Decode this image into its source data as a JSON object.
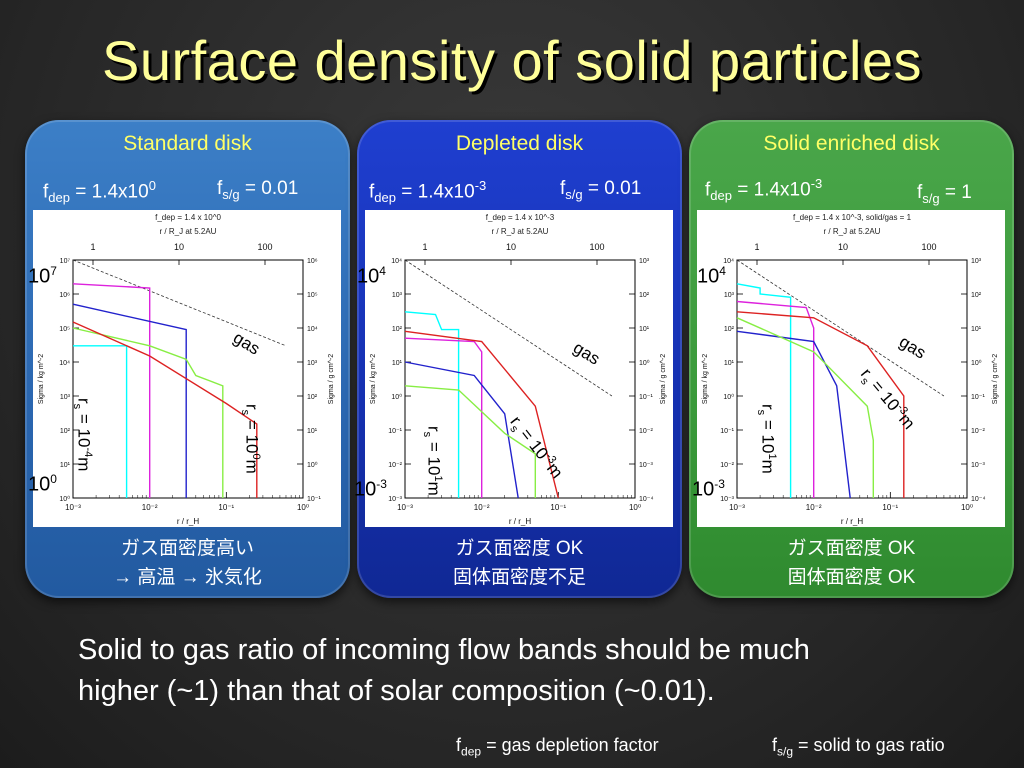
{
  "title": "Surface density of solid particles",
  "panels": [
    {
      "id": "standard",
      "title": "Standard disk",
      "fdep_base": "1.4x10",
      "fdep_exp": "0",
      "fsg": "0.01",
      "plot_header": "f_dep = 1.4 x 10^0",
      "ytop": "10",
      "ytop_exp": "7",
      "ybot": "10",
      "ybot_exp": "0",
      "size_small": "10",
      "size_small_exp": "-4",
      "size_large": "10",
      "size_large_exp": "0",
      "note_line1": "ガス面密度高い",
      "note_line2": "→ 高温 → 氷気化"
    },
    {
      "id": "depleted",
      "title": "Depleted disk",
      "fdep_base": "1.4x10",
      "fdep_exp": "-3",
      "fsg": "0.01",
      "plot_header": "f_dep = 1.4 x 10^-3",
      "ytop": "10",
      "ytop_exp": "4",
      "ybot": "10",
      "ybot_exp": "-3",
      "size_small": "10",
      "size_small_exp": "1",
      "size_large": "10",
      "size_large_exp": "-3",
      "note_line1": "ガス面密度 OK",
      "note_line2": "固体面密度不足"
    },
    {
      "id": "enriched",
      "title": "Solid enriched disk",
      "fdep_base": "1.4x10",
      "fdep_exp": "-3",
      "fsg": "1",
      "plot_header": "f_dep = 1.4 x 10^-3, solid/gas = 1",
      "ytop": "10",
      "ytop_exp": "4",
      "ybot": "10",
      "ybot_exp": "-3",
      "size_small": "10",
      "size_small_exp": "1",
      "size_large": "10",
      "size_large_exp": "-3",
      "note_line1": "ガス面密度 OK",
      "note_line2": "固体面密度 OK"
    }
  ],
  "labels": {
    "fdep_sym": "f",
    "fdep_sub": "dep",
    "fsg_sym": "f",
    "fsg_sub": "s/g",
    "rs": "r",
    "rs_sub": "s",
    "gas": "gas",
    "unit_m": "m",
    "top_axis": "r / R_J at 5.2AU",
    "x_axis": "r / r_H",
    "y_left": "Sigma / kg m^-2",
    "y_right": "Sigma / g cm^-2",
    "top_ticks": [
      "1",
      "10",
      "100"
    ],
    "x_ticks": [
      "10⁻³",
      "10⁻²",
      "10⁻¹",
      "10⁰"
    ]
  },
  "conclusion_line1": "Solid to gas ratio of incoming flow bands should be much",
  "conclusion_line2": "higher (~1) than that of solar composition (~0.01).",
  "footer": {
    "fdep_desc": "= gas depletion factor",
    "fsg_desc": "= solid to gas ratio"
  },
  "colors": {
    "title": "#ffff99",
    "panel_standard": "#2a66b0",
    "panel_depleted": "#1530b0",
    "panel_enriched": "#3a9a3a",
    "series": [
      "#00ffff",
      "#dd22dd",
      "#2222cc",
      "#88ee44",
      "#dd2222"
    ]
  },
  "chart_data": [
    {
      "type": "line",
      "title": "f_dep = 1.4 x 10^0",
      "xlabel": "r / r_H",
      "ylabel": "Sigma / kg m^-2",
      "xscale": "log",
      "yscale": "log",
      "xlim": [
        0.001,
        1
      ],
      "ylim": [
        1,
        10000000
      ],
      "series": [
        {
          "name": "gas",
          "color": "#333333",
          "dash": true,
          "x": [
            0.001,
            0.6
          ],
          "y": [
            10000000,
            30000
          ]
        },
        {
          "color": "#00ffff",
          "x": [
            0.001,
            0.005,
            0.005
          ],
          "y": [
            30000,
            30000,
            1
          ]
        },
        {
          "color": "#dd22dd",
          "x": [
            0.001,
            0.01,
            0.01
          ],
          "y": [
            2000000,
            1500000,
            1
          ]
        },
        {
          "color": "#2222cc",
          "x": [
            0.001,
            0.03,
            0.03
          ],
          "y": [
            500000,
            90000,
            1
          ]
        },
        {
          "color": "#88ee44",
          "x": [
            0.001,
            0.01,
            0.03,
            0.04,
            0.09,
            0.09
          ],
          "y": [
            100000,
            30000,
            12000,
            4000,
            2000,
            1
          ]
        },
        {
          "color": "#dd2222",
          "x": [
            0.001,
            0.01,
            0.1,
            0.25,
            0.25
          ],
          "y": [
            150000,
            15000,
            600,
            150,
            1
          ]
        }
      ]
    },
    {
      "type": "line",
      "title": "f_dep = 1.4 x 10^-3",
      "xlabel": "r / r_H",
      "ylabel": "Sigma / kg m^-2",
      "xscale": "log",
      "yscale": "log",
      "xlim": [
        0.001,
        1
      ],
      "ylim": [
        0.001,
        10000
      ],
      "series": [
        {
          "name": "gas",
          "color": "#333333",
          "dash": true,
          "x": [
            0.001,
            0.5
          ],
          "y": [
            10000,
            1
          ]
        },
        {
          "color": "#00ffff",
          "x": [
            0.001,
            0.0025,
            0.003,
            0.005,
            0.005
          ],
          "y": [
            300,
            250,
            90,
            90,
            0.001
          ]
        },
        {
          "color": "#dd22dd",
          "x": [
            0.001,
            0.008,
            0.01,
            0.01
          ],
          "y": [
            50,
            40,
            20,
            0.001
          ]
        },
        {
          "color": "#2222cc",
          "x": [
            0.001,
            0.008,
            0.02,
            0.03,
            0.03
          ],
          "y": [
            10,
            4,
            0.3,
            0.001,
            0.001
          ]
        },
        {
          "color": "#88ee44",
          "x": [
            0.001,
            0.005,
            0.02,
            0.05,
            0.05
          ],
          "y": [
            2,
            1.5,
            0.08,
            0.02,
            0.001
          ]
        },
        {
          "color": "#dd2222",
          "x": [
            0.001,
            0.01,
            0.05,
            0.1
          ],
          "y": [
            80,
            40,
            0.5,
            0.001
          ]
        }
      ]
    },
    {
      "type": "line",
      "title": "f_dep = 1.4 x 10^-3, solid/gas = 1",
      "xlabel": "r / r_H",
      "ylabel": "Sigma / kg m^-2",
      "xscale": "log",
      "yscale": "log",
      "xlim": [
        0.001,
        1
      ],
      "ylim": [
        0.001,
        10000
      ],
      "series": [
        {
          "name": "gas",
          "color": "#333333",
          "dash": true,
          "x": [
            0.001,
            0.5
          ],
          "y": [
            10000,
            1
          ]
        },
        {
          "color": "#00ffff",
          "x": [
            0.001,
            0.002,
            0.002,
            0.005,
            0.005
          ],
          "y": [
            2000,
            1500,
            1000,
            800,
            0.001
          ]
        },
        {
          "color": "#dd22dd",
          "x": [
            0.001,
            0.008,
            0.01,
            0.01
          ],
          "y": [
            600,
            400,
            100,
            0.001
          ]
        },
        {
          "color": "#2222cc",
          "x": [
            0.001,
            0.01,
            0.02,
            0.03,
            0.03
          ],
          "y": [
            80,
            40,
            2,
            0.001,
            0.001
          ]
        },
        {
          "color": "#88ee44",
          "x": [
            0.001,
            0.01,
            0.05,
            0.06,
            0.06
          ],
          "y": [
            200,
            20,
            0.5,
            0.05,
            0.001
          ]
        },
        {
          "color": "#dd2222",
          "x": [
            0.001,
            0.01,
            0.05,
            0.15,
            0.15
          ],
          "y": [
            300,
            200,
            30,
            1,
            0.001
          ]
        }
      ]
    }
  ]
}
